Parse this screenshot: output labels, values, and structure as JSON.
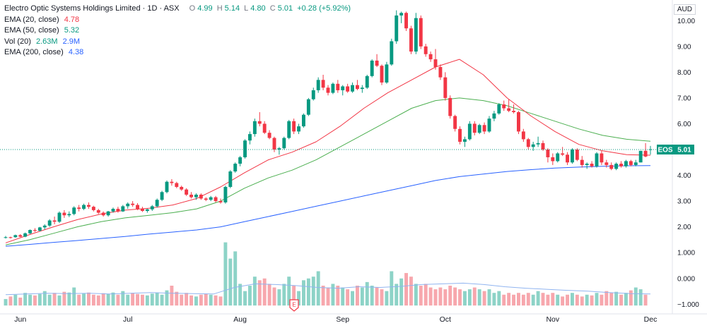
{
  "legend": {
    "title": "Electro Optic Systems Holdings Limited · 1D · ASX",
    "open_label": "O",
    "open": "4.99",
    "high_label": "H",
    "high": "5.14",
    "low_label": "L",
    "low": "4.80",
    "close_label": "C",
    "close": "5.01",
    "change": "+0.28 (+5.92%)",
    "ema20_label": "EMA (20, close)",
    "ema20_value": "4.78",
    "ema50_label": "EMA (50, close)",
    "ema50_value": "5.32",
    "vol_label": "Vol (20)",
    "vol_value": "2.63M",
    "vol_ma": "2.9M",
    "ema200_label": "EMA (200, close)",
    "ema200_value": "4.38"
  },
  "currency": "AUD",
  "price_badge": {
    "symbol": "EOS",
    "value": "5.01"
  },
  "colors": {
    "up": "#089981",
    "down": "#f23645",
    "ema20": "#f23645",
    "ema50": "#4caf50",
    "ema200": "#2962ff",
    "vol_up": "#8dd3c7",
    "vol_down": "#f7a7ad",
    "vol_ma": "#90b4f0"
  },
  "chart_data": {
    "type": "candlestick",
    "y_ticks": [
      "10.00",
      "9.00",
      "8.00",
      "7.00",
      "6.00",
      "5.00",
      "4.00",
      "3.00",
      "2.00",
      "1.000",
      "0.000",
      "−1.000"
    ],
    "ylim": [
      -1.0,
      10.0
    ],
    "x_ticks": [
      "Jun",
      "Jul",
      "Aug",
      "Sep",
      "Oct",
      "Nov",
      "Dec"
    ],
    "event_marker": "E",
    "candles": [
      [
        1.6,
        1.65,
        1.55,
        1.6
      ],
      [
        1.6,
        1.62,
        1.55,
        1.57
      ],
      [
        1.6,
        1.7,
        1.58,
        1.68
      ],
      [
        1.68,
        1.72,
        1.6,
        1.62
      ],
      [
        1.62,
        1.78,
        1.6,
        1.75
      ],
      [
        1.75,
        1.9,
        1.72,
        1.88
      ],
      [
        1.88,
        1.95,
        1.8,
        1.85
      ],
      [
        1.85,
        2.0,
        1.82,
        1.98
      ],
      [
        1.98,
        2.1,
        1.9,
        2.05
      ],
      [
        2.05,
        2.3,
        2.0,
        2.25
      ],
      [
        2.25,
        2.4,
        2.1,
        2.2
      ],
      [
        2.2,
        2.6,
        2.15,
        2.55
      ],
      [
        2.55,
        2.65,
        2.35,
        2.45
      ],
      [
        2.45,
        2.6,
        2.38,
        2.5
      ],
      [
        2.5,
        2.8,
        2.45,
        2.75
      ],
      [
        2.75,
        2.85,
        2.6,
        2.7
      ],
      [
        2.7,
        2.9,
        2.65,
        2.85
      ],
      [
        2.85,
        2.95,
        2.7,
        2.78
      ],
      [
        2.78,
        2.82,
        2.6,
        2.65
      ],
      [
        2.65,
        2.7,
        2.5,
        2.55
      ],
      [
        2.55,
        2.6,
        2.4,
        2.45
      ],
      [
        2.45,
        2.62,
        2.4,
        2.6
      ],
      [
        2.6,
        2.75,
        2.55,
        2.7
      ],
      [
        2.7,
        2.78,
        2.55,
        2.6
      ],
      [
        2.6,
        2.85,
        2.58,
        2.8
      ],
      [
        2.8,
        2.95,
        2.7,
        2.9
      ],
      [
        2.9,
        3.0,
        2.78,
        2.85
      ],
      [
        2.85,
        2.92,
        2.65,
        2.7
      ],
      [
        2.7,
        2.78,
        2.58,
        2.62
      ],
      [
        2.62,
        2.7,
        2.55,
        2.68
      ],
      [
        2.68,
        2.85,
        2.62,
        2.8
      ],
      [
        2.8,
        3.1,
        2.75,
        3.05
      ],
      [
        3.05,
        3.4,
        3.0,
        3.35
      ],
      [
        3.35,
        3.8,
        3.3,
        3.75
      ],
      [
        3.75,
        3.85,
        3.6,
        3.7
      ],
      [
        3.7,
        3.75,
        3.5,
        3.55
      ],
      [
        3.55,
        3.6,
        3.4,
        3.45
      ],
      [
        3.45,
        3.5,
        3.2,
        3.25
      ],
      [
        3.25,
        3.35,
        3.1,
        3.15
      ],
      [
        3.15,
        3.3,
        3.05,
        3.25
      ],
      [
        3.25,
        3.3,
        3.05,
        3.1
      ],
      [
        3.1,
        3.15,
        3.0,
        3.05
      ],
      [
        3.05,
        3.2,
        3.0,
        3.15
      ],
      [
        3.15,
        3.2,
        2.95,
        3.0
      ],
      [
        3.0,
        3.1,
        2.9,
        2.95
      ],
      [
        2.95,
        3.6,
        2.9,
        3.55
      ],
      [
        3.55,
        4.2,
        3.5,
        4.15
      ],
      [
        4.15,
        4.5,
        4.1,
        4.45
      ],
      [
        4.45,
        4.75,
        4.35,
        4.7
      ],
      [
        4.7,
        5.4,
        4.65,
        5.35
      ],
      [
        5.35,
        5.7,
        5.2,
        5.6
      ],
      [
        5.6,
        6.2,
        5.5,
        6.1
      ],
      [
        6.1,
        6.45,
        5.9,
        6.0
      ],
      [
        6.0,
        6.1,
        5.6,
        5.65
      ],
      [
        5.65,
        5.75,
        5.4,
        5.45
      ],
      [
        5.45,
        5.5,
        4.9,
        5.0
      ],
      [
        5.0,
        5.1,
        4.8,
        5.05
      ],
      [
        5.05,
        5.5,
        5.0,
        5.45
      ],
      [
        5.45,
        6.15,
        5.4,
        6.1
      ],
      [
        6.1,
        6.2,
        5.6,
        5.7
      ],
      [
        5.7,
        6.0,
        5.6,
        5.9
      ],
      [
        5.9,
        6.4,
        5.85,
        6.35
      ],
      [
        6.35,
        7.0,
        6.3,
        6.95
      ],
      [
        6.95,
        7.4,
        6.9,
        7.3
      ],
      [
        7.3,
        7.8,
        7.2,
        7.7
      ],
      [
        7.7,
        7.9,
        7.3,
        7.4
      ],
      [
        7.4,
        7.5,
        7.1,
        7.2
      ],
      [
        7.2,
        7.6,
        7.15,
        7.55
      ],
      [
        7.55,
        7.7,
        7.2,
        7.3
      ],
      [
        7.3,
        7.5,
        7.1,
        7.45
      ],
      [
        7.45,
        7.55,
        7.2,
        7.25
      ],
      [
        7.25,
        7.6,
        7.2,
        7.5
      ],
      [
        7.5,
        7.7,
        7.3,
        7.35
      ],
      [
        7.35,
        7.5,
        7.2,
        7.4
      ],
      [
        7.4,
        7.9,
        7.35,
        7.85
      ],
      [
        7.85,
        8.5,
        7.8,
        8.45
      ],
      [
        8.45,
        8.7,
        8.2,
        8.25
      ],
      [
        8.25,
        8.3,
        7.5,
        7.6
      ],
      [
        7.6,
        8.4,
        7.55,
        8.3
      ],
      [
        8.3,
        9.3,
        8.25,
        9.2
      ],
      [
        9.2,
        10.4,
        9.1,
        10.2
      ],
      [
        10.2,
        10.35,
        9.9,
        10.3
      ],
      [
        10.3,
        10.35,
        9.6,
        9.7
      ],
      [
        9.7,
        9.8,
        8.7,
        8.8
      ],
      [
        8.8,
        10.3,
        8.7,
        10.1
      ],
      [
        10.1,
        10.2,
        8.9,
        9.0
      ],
      [
        9.0,
        9.1,
        8.6,
        8.7
      ],
      [
        8.7,
        8.8,
        8.4,
        8.5
      ],
      [
        8.5,
        8.9,
        8.1,
        8.2
      ],
      [
        8.2,
        8.3,
        7.7,
        7.8
      ],
      [
        7.8,
        8.0,
        6.9,
        7.0
      ],
      [
        7.0,
        7.1,
        6.2,
        6.3
      ],
      [
        6.3,
        6.35,
        5.7,
        5.8
      ],
      [
        5.8,
        5.9,
        5.2,
        5.3
      ],
      [
        5.3,
        5.5,
        5.1,
        5.4
      ],
      [
        5.4,
        6.1,
        5.35,
        6.0
      ],
      [
        6.0,
        6.1,
        5.55,
        5.65
      ],
      [
        5.65,
        6.0,
        5.6,
        5.95
      ],
      [
        5.95,
        6.05,
        5.6,
        5.7
      ],
      [
        5.7,
        6.3,
        5.65,
        6.2
      ],
      [
        6.2,
        6.5,
        6.1,
        6.4
      ],
      [
        6.4,
        6.8,
        6.35,
        6.75
      ],
      [
        6.75,
        6.9,
        6.5,
        6.6
      ],
      [
        6.6,
        6.95,
        6.45,
        6.5
      ],
      [
        6.5,
        6.75,
        6.4,
        6.45
      ],
      [
        6.45,
        6.5,
        5.6,
        5.7
      ],
      [
        5.7,
        5.8,
        5.3,
        5.4
      ],
      [
        5.4,
        5.45,
        5.0,
        5.1
      ],
      [
        5.1,
        5.3,
        4.95,
        5.2
      ],
      [
        5.2,
        5.5,
        5.1,
        5.25
      ],
      [
        5.25,
        5.35,
        4.95,
        5.0
      ],
      [
        5.0,
        5.05,
        4.5,
        4.7
      ],
      [
        4.7,
        4.85,
        4.4,
        4.55
      ],
      [
        4.55,
        4.9,
        4.5,
        4.85
      ],
      [
        4.85,
        5.1,
        4.75,
        4.8
      ],
      [
        4.8,
        4.9,
        4.4,
        4.5
      ],
      [
        4.5,
        5.05,
        4.45,
        5.0
      ],
      [
        5.0,
        5.05,
        4.55,
        4.6
      ],
      [
        4.6,
        4.75,
        4.3,
        4.4
      ],
      [
        4.4,
        4.5,
        4.25,
        4.45
      ],
      [
        4.45,
        4.55,
        4.3,
        4.35
      ],
      [
        4.35,
        4.9,
        4.3,
        4.85
      ],
      [
        4.85,
        4.95,
        4.4,
        4.5
      ],
      [
        4.5,
        4.6,
        4.3,
        4.4
      ],
      [
        4.4,
        4.5,
        4.2,
        4.25
      ],
      [
        4.25,
        4.5,
        4.2,
        4.45
      ],
      [
        4.45,
        4.55,
        4.3,
        4.35
      ],
      [
        4.35,
        4.6,
        4.3,
        4.55
      ],
      [
        4.55,
        4.6,
        4.35,
        4.4
      ],
      [
        4.4,
        4.6,
        4.35,
        4.5
      ],
      [
        4.5,
        4.95,
        4.5,
        4.95
      ],
      [
        4.95,
        5.25,
        4.7,
        4.73
      ],
      [
        4.99,
        5.14,
        4.8,
        5.01
      ]
    ],
    "ema20": [
      1.38,
      1.7,
      2.0,
      2.28,
      2.5,
      2.65,
      2.72,
      2.85,
      3.1,
      3.55,
      4.1,
      4.6,
      4.9,
      5.3,
      5.9,
      6.6,
      7.2,
      7.7,
      8.2,
      8.5,
      7.9,
      7.0,
      6.3,
      5.7,
      5.2,
      4.95,
      4.8,
      4.78
    ],
    "ema50": [
      1.3,
      1.5,
      1.75,
      2.0,
      2.2,
      2.35,
      2.45,
      2.55,
      2.7,
      3.0,
      3.5,
      3.9,
      4.2,
      4.6,
      5.1,
      5.6,
      6.1,
      6.6,
      6.9,
      7.0,
      6.9,
      6.7,
      6.4,
      6.1,
      5.8,
      5.55,
      5.4,
      5.32
    ],
    "ema200": [
      1.25,
      1.32,
      1.4,
      1.47,
      1.55,
      1.63,
      1.72,
      1.8,
      1.88,
      2.0,
      2.2,
      2.4,
      2.6,
      2.8,
      3.0,
      3.2,
      3.4,
      3.6,
      3.8,
      3.95,
      4.05,
      4.15,
      4.22,
      4.28,
      4.32,
      4.35,
      4.37,
      4.38
    ],
    "volume": [
      0.18,
      0.25,
      0.3,
      0.22,
      0.35,
      0.3,
      0.28,
      0.32,
      0.4,
      0.3,
      0.35,
      0.28,
      0.38,
      0.36,
      0.5,
      0.3,
      0.33,
      0.36,
      0.3,
      0.28,
      0.34,
      0.32,
      0.36,
      0.3,
      0.4,
      0.3,
      0.35,
      0.32,
      0.3,
      0.28,
      0.33,
      0.36,
      0.3,
      0.42,
      0.55,
      0.38,
      0.3,
      0.35,
      0.28,
      0.25,
      0.3,
      0.33,
      0.3,
      0.28,
      0.25,
      1.75,
      1.3,
      1.5,
      0.6,
      0.4,
      0.55,
      0.8,
      0.7,
      0.75,
      0.6,
      0.5,
      0.45,
      0.6,
      0.8,
      0.55,
      0.4,
      0.7,
      0.75,
      0.8,
      0.95,
      0.55,
      0.5,
      0.6,
      0.55,
      0.5,
      0.45,
      0.4,
      0.55,
      0.5,
      0.65,
      0.55,
      0.5,
      0.45,
      0.4,
      0.95,
      0.6,
      0.75,
      0.9,
      0.8,
      0.6,
      0.55,
      0.6,
      0.5,
      0.45,
      0.5,
      0.45,
      0.55,
      0.5,
      0.45,
      0.4,
      0.45,
      0.5,
      0.45,
      0.4,
      0.45,
      0.35,
      0.4,
      0.3,
      0.35,
      0.3,
      0.35,
      0.3,
      0.35,
      0.3,
      0.4,
      0.35,
      0.3,
      0.35,
      0.3,
      0.25,
      0.3,
      0.35,
      0.3,
      0.25,
      0.3,
      0.28,
      0.35,
      0.3,
      0.4,
      0.35,
      0.38,
      0.3,
      0.35,
      0.42,
      0.5,
      0.45,
      0.3
    ],
    "volume_ma": [
      0.3,
      0.32,
      0.34,
      0.33,
      0.34,
      0.32,
      0.34,
      0.36,
      0.34,
      0.33,
      0.32,
      0.5,
      0.6,
      0.58,
      0.55,
      0.5,
      0.48,
      0.52,
      0.5,
      0.53,
      0.58,
      0.6,
      0.62,
      0.58,
      0.52,
      0.48,
      0.45,
      0.42,
      0.4,
      0.36,
      0.33,
      0.32
    ]
  }
}
